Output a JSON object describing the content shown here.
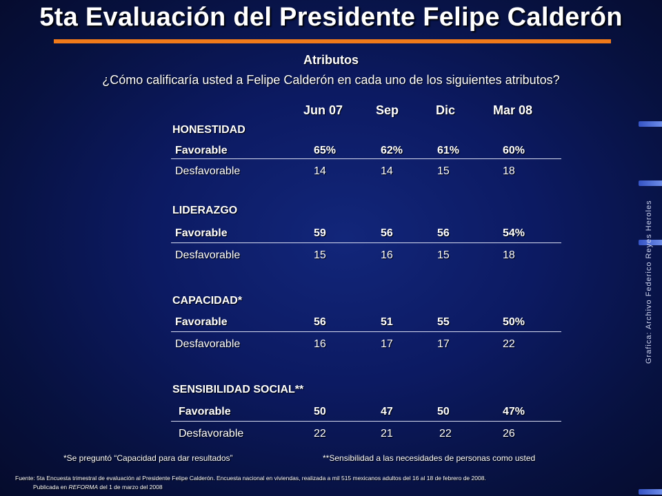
{
  "title": "5ta Evaluación del Presidente Felipe Calderón",
  "subtitle": "Atributos",
  "question": "¿Cómo calificaría usted a Felipe Calderón en cada uno de los siguientes atributos?",
  "columns": [
    "Jun 07",
    "Sep",
    "Dic",
    "Mar 08"
  ],
  "sections": [
    {
      "name": "HONESTIDAD",
      "favorable": {
        "label": "Favorable",
        "values": [
          "65%",
          "62%",
          "61%",
          "60%"
        ]
      },
      "desfavorable": {
        "label": "Desfavorable",
        "values": [
          "14",
          "14",
          "15",
          "18"
        ]
      }
    },
    {
      "name": "LIDERAZGO",
      "favorable": {
        "label": "Favorable",
        "values": [
          "59",
          "56",
          "56",
          "54%"
        ]
      },
      "desfavorable": {
        "label": "Desfavorable",
        "values": [
          "15",
          "16",
          "15",
          "18"
        ]
      }
    },
    {
      "name": "CAPACIDAD*",
      "favorable": {
        "label": "Favorable",
        "values": [
          "56",
          "51",
          "55",
          "50%"
        ]
      },
      "desfavorable": {
        "label": "Desfavorable",
        "values": [
          "16",
          "17",
          "17",
          "22"
        ]
      }
    },
    {
      "name": "SENSIBILIDAD SOCIAL**",
      "favorable": {
        "label": "Favorable",
        "values": [
          "50",
          "47",
          "50",
          "47%"
        ]
      },
      "desfavorable": {
        "label": "Desfavorable",
        "values": [
          "22",
          "21",
          "22",
          "26"
        ]
      }
    }
  ],
  "footnotes": {
    "capacidad": "*Se preguntó “Capacidad para dar resultados”",
    "sensibilidad": "**Sensibilidad a las necesidades de personas como usted"
  },
  "source": {
    "line1": "Fuente: 5ta Encuesta trimestral de evaluación al Presidente Felipe Calderón. Encuesta nacional en viviendas, realizada a mil 515 mexicanos adultos del 16 al 18 de febrero de 2008.",
    "line2_prefix": "Publicada en ",
    "line2_pub": "REFORMA",
    "line2_suffix": " del 1 de marzo del 2008"
  },
  "credit": "Grafica: Archivo Federico Reyes Heroles",
  "colors": {
    "accent": "#f07a1a",
    "background": "#0c1a62"
  }
}
